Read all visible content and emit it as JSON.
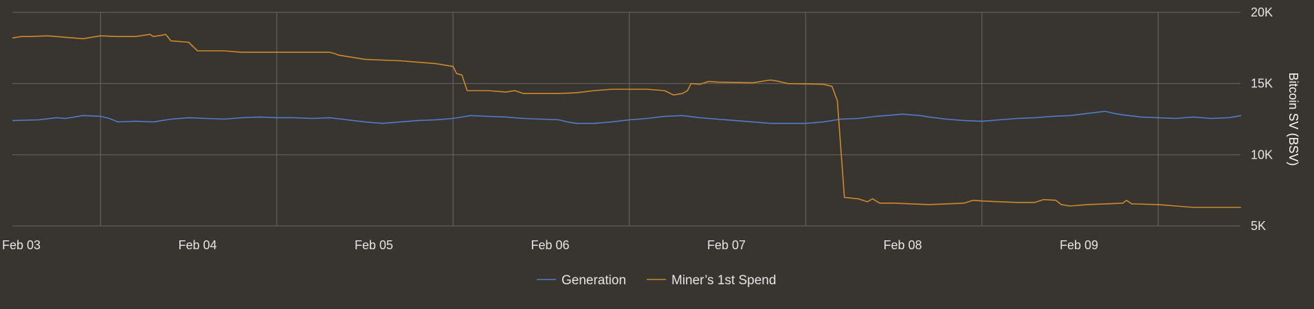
{
  "chart_data": {
    "type": "line",
    "x_tick_labels": [
      "Feb 03",
      "Feb 04",
      "Feb 05",
      "Feb 06",
      "Feb 07",
      "Feb 08",
      "Feb 09"
    ],
    "xlim": [
      0,
      6.97
    ],
    "x_unit": "days since Feb 03 00:00",
    "ylim": [
      5000,
      20000
    ],
    "y_ticks": [
      5000,
      10000,
      15000,
      20000
    ],
    "y_tick_labels": [
      "5K",
      "10K",
      "15K",
      "20K"
    ],
    "ylabel": "Bitcoin SV (BSV)",
    "y_axis_position": "right",
    "grid": true,
    "legend_placement": "bottom-center",
    "series": [
      {
        "name": "Generation",
        "color": "#4f7fc9",
        "points": [
          [
            0.0,
            12400
          ],
          [
            0.15,
            12450
          ],
          [
            0.25,
            12600
          ],
          [
            0.3,
            12550
          ],
          [
            0.4,
            12750
          ],
          [
            0.5,
            12700
          ],
          [
            0.55,
            12550
          ],
          [
            0.6,
            12300
          ],
          [
            0.7,
            12350
          ],
          [
            0.8,
            12300
          ],
          [
            0.9,
            12500
          ],
          [
            1.0,
            12600
          ],
          [
            1.1,
            12550
          ],
          [
            1.2,
            12500
          ],
          [
            1.3,
            12600
          ],
          [
            1.4,
            12650
          ],
          [
            1.5,
            12600
          ],
          [
            1.6,
            12600
          ],
          [
            1.7,
            12550
          ],
          [
            1.8,
            12600
          ],
          [
            1.9,
            12450
          ],
          [
            2.0,
            12300
          ],
          [
            2.1,
            12200
          ],
          [
            2.2,
            12300
          ],
          [
            2.3,
            12400
          ],
          [
            2.4,
            12450
          ],
          [
            2.5,
            12550
          ],
          [
            2.6,
            12750
          ],
          [
            2.7,
            12700
          ],
          [
            2.8,
            12650
          ],
          [
            2.9,
            12550
          ],
          [
            3.0,
            12500
          ],
          [
            3.1,
            12450
          ],
          [
            3.15,
            12300
          ],
          [
            3.2,
            12200
          ],
          [
            3.3,
            12200
          ],
          [
            3.4,
            12300
          ],
          [
            3.5,
            12450
          ],
          [
            3.6,
            12550
          ],
          [
            3.7,
            12700
          ],
          [
            3.8,
            12750
          ],
          [
            3.9,
            12600
          ],
          [
            4.0,
            12500
          ],
          [
            4.1,
            12400
          ],
          [
            4.2,
            12300
          ],
          [
            4.3,
            12200
          ],
          [
            4.4,
            12200
          ],
          [
            4.5,
            12200
          ],
          [
            4.6,
            12300
          ],
          [
            4.7,
            12500
          ],
          [
            4.8,
            12550
          ],
          [
            4.9,
            12700
          ],
          [
            5.0,
            12800
          ],
          [
            5.05,
            12850
          ],
          [
            5.15,
            12750
          ],
          [
            5.2,
            12650
          ],
          [
            5.3,
            12500
          ],
          [
            5.4,
            12400
          ],
          [
            5.5,
            12350
          ],
          [
            5.6,
            12450
          ],
          [
            5.7,
            12550
          ],
          [
            5.8,
            12600
          ],
          [
            5.9,
            12700
          ],
          [
            6.0,
            12750
          ],
          [
            6.1,
            12900
          ],
          [
            6.2,
            13050
          ],
          [
            6.25,
            12900
          ],
          [
            6.3,
            12800
          ],
          [
            6.4,
            12650
          ],
          [
            6.5,
            12600
          ],
          [
            6.6,
            12550
          ],
          [
            6.7,
            12650
          ],
          [
            6.8,
            12550
          ],
          [
            6.9,
            12600
          ],
          [
            6.97,
            12750
          ]
        ]
      },
      {
        "name": "Miner’s 1st Spend",
        "color": "#d08a2a",
        "points": [
          [
            0.0,
            18200
          ],
          [
            0.05,
            18300
          ],
          [
            0.1,
            18300
          ],
          [
            0.2,
            18350
          ],
          [
            0.3,
            18250
          ],
          [
            0.35,
            18200
          ],
          [
            0.4,
            18150
          ],
          [
            0.45,
            18250
          ],
          [
            0.5,
            18350
          ],
          [
            0.6,
            18300
          ],
          [
            0.7,
            18300
          ],
          [
            0.75,
            18400
          ],
          [
            0.78,
            18450
          ],
          [
            0.8,
            18300
          ],
          [
            0.85,
            18400
          ],
          [
            0.87,
            18450
          ],
          [
            0.9,
            18000
          ],
          [
            1.0,
            17900
          ],
          [
            1.05,
            17300
          ],
          [
            1.1,
            17300
          ],
          [
            1.2,
            17300
          ],
          [
            1.3,
            17200
          ],
          [
            1.4,
            17200
          ],
          [
            1.5,
            17200
          ],
          [
            1.7,
            17200
          ],
          [
            1.8,
            17200
          ],
          [
            1.83,
            17100
          ],
          [
            1.85,
            17000
          ],
          [
            1.9,
            16900
          ],
          [
            2.0,
            16700
          ],
          [
            2.1,
            16650
          ],
          [
            2.2,
            16600
          ],
          [
            2.3,
            16500
          ],
          [
            2.4,
            16400
          ],
          [
            2.45,
            16300
          ],
          [
            2.5,
            16200
          ],
          [
            2.52,
            15700
          ],
          [
            2.55,
            15600
          ],
          [
            2.58,
            14500
          ],
          [
            2.7,
            14500
          ],
          [
            2.8,
            14400
          ],
          [
            2.85,
            14500
          ],
          [
            2.9,
            14300
          ],
          [
            3.0,
            14300
          ],
          [
            3.1,
            14300
          ],
          [
            3.2,
            14350
          ],
          [
            3.3,
            14500
          ],
          [
            3.4,
            14600
          ],
          [
            3.5,
            14600
          ],
          [
            3.6,
            14600
          ],
          [
            3.7,
            14500
          ],
          [
            3.75,
            14200
          ],
          [
            3.8,
            14300
          ],
          [
            3.83,
            14500
          ],
          [
            3.85,
            15000
          ],
          [
            3.9,
            14950
          ],
          [
            3.95,
            15150
          ],
          [
            4.0,
            15100
          ],
          [
            4.2,
            15050
          ],
          [
            4.3,
            15250
          ],
          [
            4.35,
            15150
          ],
          [
            4.4,
            15000
          ],
          [
            4.6,
            14950
          ],
          [
            4.65,
            14800
          ],
          [
            4.68,
            13800
          ],
          [
            4.72,
            7000
          ],
          [
            4.8,
            6900
          ],
          [
            4.85,
            6700
          ],
          [
            4.88,
            6900
          ],
          [
            4.92,
            6600
          ],
          [
            5.0,
            6600
          ],
          [
            5.1,
            6550
          ],
          [
            5.2,
            6500
          ],
          [
            5.3,
            6550
          ],
          [
            5.4,
            6600
          ],
          [
            5.45,
            6800
          ],
          [
            5.5,
            6750
          ],
          [
            5.6,
            6700
          ],
          [
            5.7,
            6650
          ],
          [
            5.8,
            6650
          ],
          [
            5.85,
            6850
          ],
          [
            5.92,
            6800
          ],
          [
            5.95,
            6500
          ],
          [
            6.0,
            6400
          ],
          [
            6.1,
            6500
          ],
          [
            6.2,
            6550
          ],
          [
            6.3,
            6600
          ],
          [
            6.32,
            6800
          ],
          [
            6.35,
            6550
          ],
          [
            6.5,
            6500
          ],
          [
            6.6,
            6400
          ],
          [
            6.7,
            6300
          ],
          [
            6.97,
            6300
          ]
        ]
      }
    ]
  }
}
